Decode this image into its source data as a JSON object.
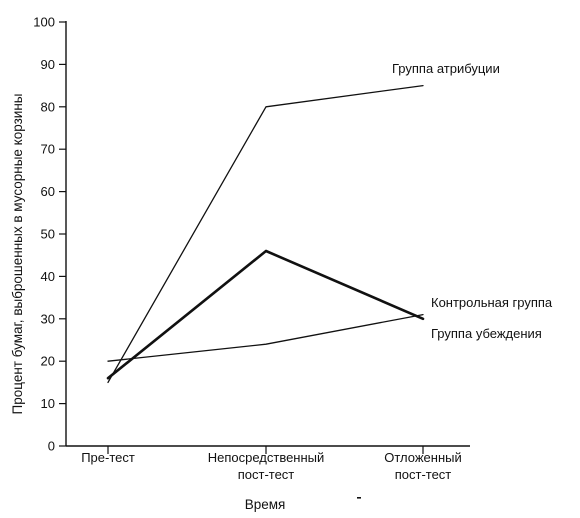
{
  "chart_data": {
    "type": "line",
    "title": "",
    "xlabel": "Время",
    "ylabel": "Процент бумаг, выброшенных в мусорные корзины",
    "ylim": [
      0,
      100
    ],
    "yticks": [
      0,
      10,
      20,
      30,
      40,
      50,
      60,
      70,
      80,
      90,
      100
    ],
    "categories": [
      [
        "Пре-тест"
      ],
      [
        "Непосредственный",
        "пост-тест"
      ],
      [
        "Отложенный",
        "пост-тест"
      ]
    ],
    "grid": false,
    "legend": "inline-labels-at-line-ends",
    "series": [
      {
        "name": "Группа атрибуции",
        "values": [
          15,
          80,
          85
        ],
        "stroke_weight": "thin",
        "color": "#111111"
      },
      {
        "name": "Контрольная группа",
        "values": [
          20,
          24,
          31
        ],
        "stroke_weight": "thin",
        "color": "#111111"
      },
      {
        "name": "Группа убеждения",
        "values": [
          16,
          46,
          30
        ],
        "stroke_weight": "bold",
        "color": "#111111"
      }
    ]
  }
}
